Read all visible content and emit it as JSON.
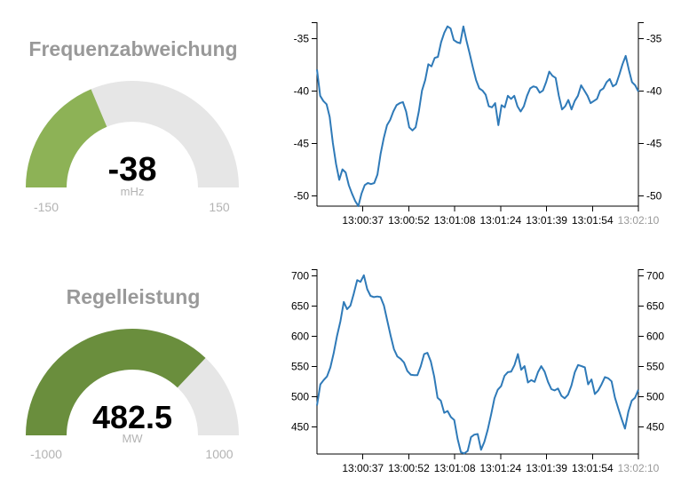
{
  "gauges": [
    {
      "title": "Frequenzabweichung",
      "value": -38,
      "value_text": "-38",
      "unit": "mHz",
      "min": -150,
      "max": 150,
      "min_label": "-150",
      "max_label": "150",
      "color": "#8db256"
    },
    {
      "title": "Regelleistung",
      "value": 482.5,
      "value_text": "482.5",
      "unit": "MW",
      "min": -1000,
      "max": 1000,
      "min_label": "-1000",
      "max_label": "1000",
      "color": "#6a8e3d"
    }
  ],
  "colors": {
    "line": "#2f7ab8",
    "gauge_track": "#e6e6e6"
  },
  "chart_data": [
    {
      "type": "line",
      "x_tick_labels": [
        "13:00:37",
        "13:00:52",
        "13:01:08",
        "13:01:24",
        "13:01:39",
        "13:01:54",
        "13:02:10"
      ],
      "ylim": [
        -51,
        -33.5
      ],
      "y_ticks": [
        -50,
        -45,
        -40,
        -35
      ],
      "y_tick_labels": [
        "-50",
        "-45",
        "-40",
        "-35"
      ],
      "grid": false,
      "series": [
        {
          "values": [
            -38,
            -40.5,
            -41,
            -41.3,
            -42.5,
            -45,
            -47,
            -48.5,
            -47.5,
            -47.8,
            -49,
            -49.8,
            -50.5,
            -51,
            -49.8,
            -49,
            -48.8,
            -48.9,
            -48.8,
            -48,
            -46,
            -44.5,
            -43.3,
            -42.8,
            -42,
            -41.4,
            -41.2,
            -41.1,
            -42,
            -43.5,
            -43.8,
            -43.5,
            -42,
            -40,
            -39,
            -37.5,
            -37.7,
            -36.9,
            -36.8,
            -35.4,
            -34.5,
            -33.9,
            -34.1,
            -35.2,
            -35.4,
            -35.5,
            -33.9,
            -35.3,
            -36.5,
            -37.8,
            -39,
            -39.8,
            -40,
            -40.4,
            -41.5,
            -41.6,
            -41.2,
            -43.3,
            -41.4,
            -41.6,
            -40.5,
            -40.8,
            -40.5,
            -41.5,
            -42,
            -41.5,
            -40.5,
            -39.8,
            -39.6,
            -39.7,
            -40.2,
            -40,
            -39.2,
            -38.2,
            -38.6,
            -38.8,
            -40.5,
            -41.8,
            -41.5,
            -40.9,
            -41.8,
            -41,
            -40.5,
            -39.5,
            -40,
            -40.5,
            -41.2,
            -41,
            -40.8,
            -40,
            -39.8,
            -39.2,
            -38.9,
            -39.6,
            -39.4,
            -38.5,
            -37.5,
            -36.7,
            -38,
            -39.2,
            -39.5,
            -40.1
          ]
        }
      ]
    },
    {
      "type": "line",
      "x_tick_labels": [
        "13:00:37",
        "13:00:52",
        "13:01:08",
        "13:01:24",
        "13:01:39",
        "13:01:54",
        "13:02:10"
      ],
      "ylim": [
        405,
        710
      ],
      "y_ticks": [
        450,
        500,
        550,
        600,
        650,
        700
      ],
      "y_tick_labels": [
        "450",
        "500",
        "550",
        "600",
        "650",
        "700"
      ],
      "grid": false,
      "series": [
        {
          "values": [
            485,
            520,
            527,
            533,
            548,
            572,
            600,
            624,
            656,
            644,
            650,
            670,
            692,
            689,
            700,
            677,
            666,
            664,
            665,
            664,
            650,
            625,
            600,
            578,
            566,
            562,
            556,
            542,
            536,
            535,
            535,
            550,
            570,
            572,
            558,
            533,
            498,
            493,
            473,
            476,
            466,
            461,
            430,
            408,
            406,
            410,
            433,
            437,
            438,
            412,
            425,
            445,
            470,
            497,
            511,
            517,
            534,
            540,
            541,
            552,
            570,
            544,
            550,
            523,
            527,
            524,
            540,
            550,
            541,
            524,
            512,
            510,
            513,
            501,
            497,
            503,
            518,
            540,
            552,
            550,
            548,
            520,
            528,
            504,
            510,
            520,
            532,
            530,
            525,
            498,
            480,
            463,
            447,
            475,
            493,
            498,
            511
          ]
        }
      ]
    }
  ]
}
